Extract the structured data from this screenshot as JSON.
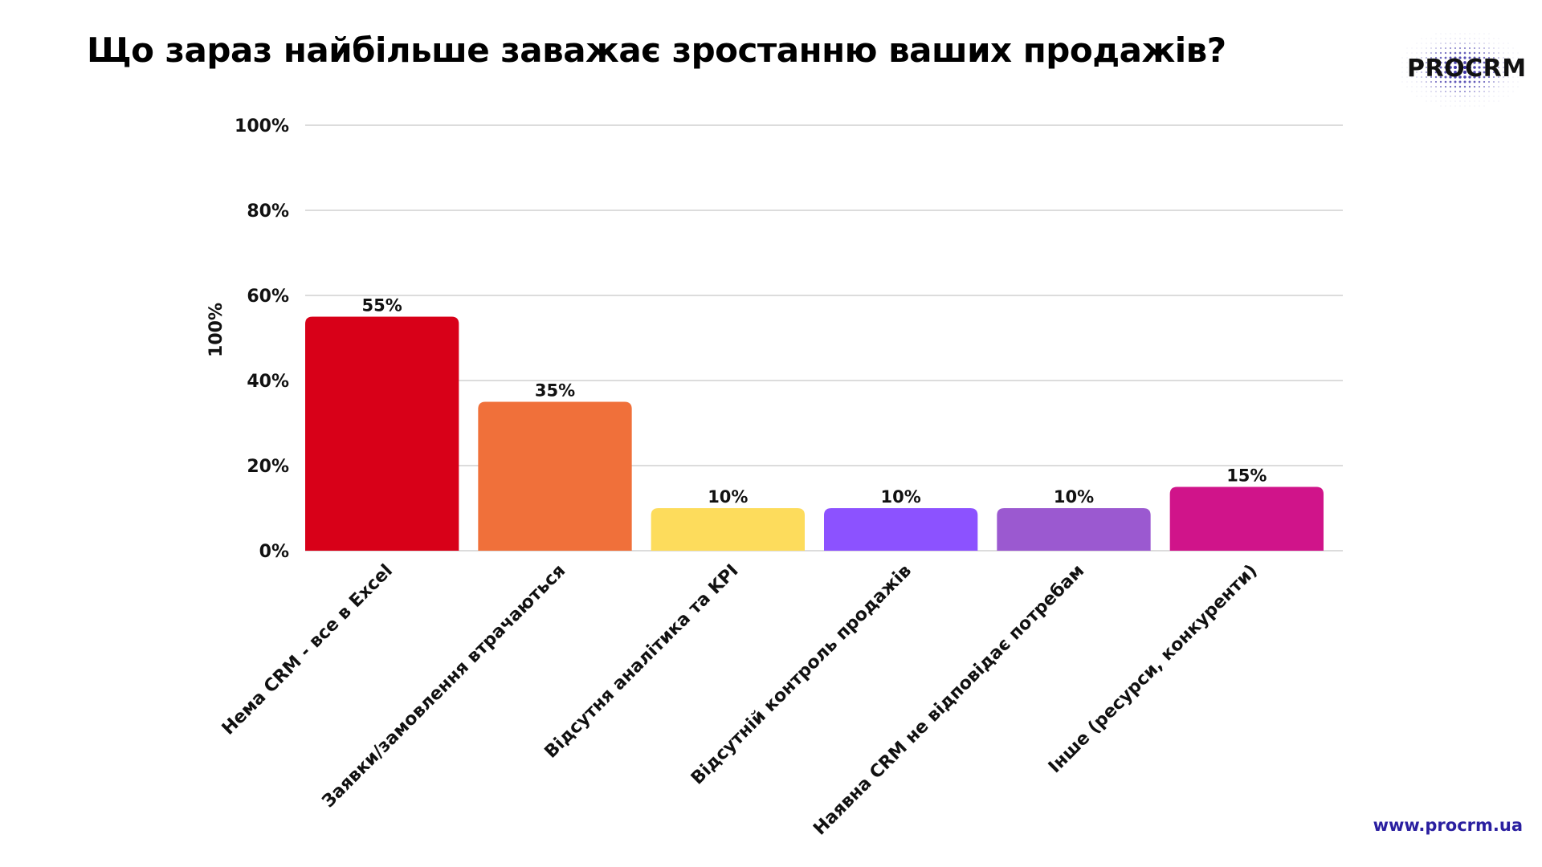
{
  "title": "Що зараз найбільше заважає зростанню ваших продажів?",
  "logo": {
    "text": "PROCRM",
    "dot_color": "#2a1fa0"
  },
  "website": {
    "text": "www.procrm.ua",
    "color": "#2a1fa0"
  },
  "chart_data": {
    "type": "bar",
    "ylabel": "100%",
    "xlabel": "",
    "ylim": [
      0,
      100
    ],
    "yticks": [
      0,
      20,
      40,
      60,
      80,
      100
    ],
    "ytick_labels": [
      "0%",
      "20%",
      "40%",
      "60%",
      "80%",
      "100%"
    ],
    "grid": true,
    "categories": [
      "Нема CRM - все в Excel",
      "Заявки/замовлення втрачаються",
      "Відсутня аналітика та KPI",
      "Відсутній контроль продажів",
      "Наявна CRM не відповідає потребам",
      "Інше (ресурси, конкуренти)"
    ],
    "values": [
      55,
      35,
      10,
      10,
      10,
      15
    ],
    "value_labels": [
      "55%",
      "35%",
      "10%",
      "10%",
      "10%",
      "15%"
    ],
    "colors": [
      "#d80018",
      "#f0703a",
      "#fddc5c",
      "#8c52ff",
      "#9b59d0",
      "#d0148a"
    ]
  }
}
